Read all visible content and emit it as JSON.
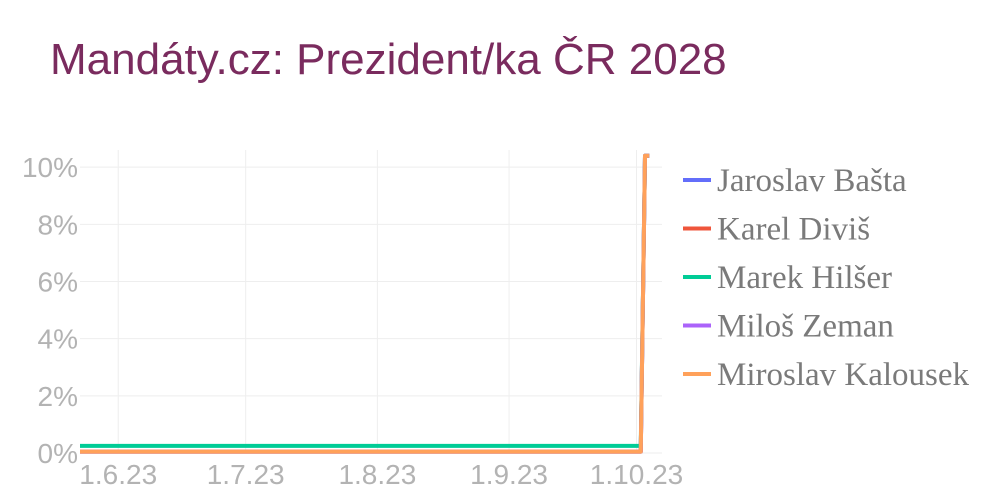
{
  "colors": {
    "title": "#7a2b5e",
    "tick": "#b3b3b3",
    "legend_text": "#7a7a7a",
    "grid": "#eeeeee"
  },
  "chart_data": {
    "type": "line",
    "title": "Mandáty.cz: Prezident/ka ČR 2028",
    "xlabel": "",
    "ylabel": "",
    "x_axis": {
      "type": "date",
      "range": [
        "2023-05-23",
        "2023-10-07"
      ],
      "ticks": [
        {
          "value": "2023-06-01",
          "label": "1.6.23"
        },
        {
          "value": "2023-07-01",
          "label": "1.7.23"
        },
        {
          "value": "2023-08-01",
          "label": "1.8.23"
        },
        {
          "value": "2023-09-01",
          "label": "1.9.23"
        },
        {
          "value": "2023-10-01",
          "label": "1.10.23"
        }
      ]
    },
    "y_axis": {
      "range": [
        0,
        10.6
      ],
      "unit": "%",
      "ticks": [
        {
          "value": 0,
          "label": "0%"
        },
        {
          "value": 2,
          "label": "2%"
        },
        {
          "value": 4,
          "label": "4%"
        },
        {
          "value": 6,
          "label": "6%"
        },
        {
          "value": 8,
          "label": "8%"
        },
        {
          "value": 10,
          "label": "10%"
        }
      ]
    },
    "grid": true,
    "legend_position": "right",
    "series": [
      {
        "name": "Jaroslav Bašta",
        "color": "#636efa",
        "points": [
          {
            "x": "2023-05-23",
            "y": 0.05
          },
          {
            "x": "2023-10-02",
            "y": 0.05
          },
          {
            "x": "2023-10-03",
            "y": 10.4
          },
          {
            "x": "2023-10-04",
            "y": 10.4
          }
        ]
      },
      {
        "name": "Karel Diviš",
        "color": "#ef553b",
        "points": [
          {
            "x": "2023-05-23",
            "y": 0.05
          },
          {
            "x": "2023-10-02",
            "y": 0.05
          },
          {
            "x": "2023-10-03",
            "y": 10.4
          },
          {
            "x": "2023-10-04",
            "y": 10.4
          }
        ]
      },
      {
        "name": "Marek Hilšer",
        "color": "#00cc96",
        "points": [
          {
            "x": "2023-05-23",
            "y": 0.25
          },
          {
            "x": "2023-10-02",
            "y": 0.25
          },
          {
            "x": "2023-10-03",
            "y": 10.4
          },
          {
            "x": "2023-10-04",
            "y": 10.4
          }
        ]
      },
      {
        "name": "Miloš Zeman",
        "color": "#ab63fa",
        "points": [
          {
            "x": "2023-05-23",
            "y": 0.05
          },
          {
            "x": "2023-10-02",
            "y": 0.05
          },
          {
            "x": "2023-10-03",
            "y": 10.4
          },
          {
            "x": "2023-10-04",
            "y": 10.4
          }
        ]
      },
      {
        "name": "Miroslav Kalousek",
        "color": "#ffa15a",
        "points": [
          {
            "x": "2023-05-23",
            "y": 0.05
          },
          {
            "x": "2023-10-02",
            "y": 0.05
          },
          {
            "x": "2023-10-03",
            "y": 10.4
          },
          {
            "x": "2023-10-04",
            "y": 10.4
          }
        ]
      }
    ]
  }
}
